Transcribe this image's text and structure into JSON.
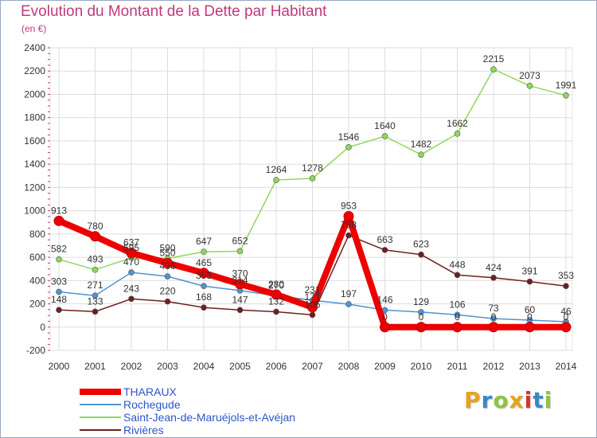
{
  "header": {
    "title": "Evolution du Montant de la Dette par Habitant",
    "subtitle": "(en €)"
  },
  "logo": {
    "text": "Proxiti",
    "colors": [
      "#e8a21c",
      "#3d86c6",
      "#8cc63f",
      "#e8a21c",
      "#d9312b",
      "#3d86c6",
      "#8cc63f"
    ]
  },
  "chart_data": {
    "type": "line",
    "x": [
      "2000",
      "2001",
      "2002",
      "2003",
      "2004",
      "2005",
      "2006",
      "2007",
      "2008",
      "2009",
      "2010",
      "2011",
      "2012",
      "2013",
      "2014"
    ],
    "ylim": [
      -200,
      2400
    ],
    "yticks": [
      -200,
      0,
      200,
      400,
      600,
      800,
      1000,
      1200,
      1400,
      1600,
      1800,
      2000,
      2200,
      2400
    ],
    "grid": true,
    "legend_position": "bottom-left",
    "series": [
      {
        "name": "THARAUX",
        "color": "#ee0000",
        "values": [
          913,
          780,
          637,
          550,
          465,
          370,
          280,
          171,
          953,
          0,
          0,
          0,
          0,
          0,
          0
        ],
        "labels": [
          "913",
          "780",
          "637",
          "550",
          "465",
          "370",
          "280",
          "171",
          "953",
          "0",
          "0",
          "0",
          "0",
          "0",
          "0"
        ]
      },
      {
        "name": "Rochegude",
        "color": "#4f94d1",
        "values": [
          303,
          271,
          470,
          436,
          353,
          314,
          270,
          231,
          197,
          146,
          129,
          106,
          73,
          60,
          46
        ],
        "labels": [
          "303",
          "271",
          "470",
          "436",
          "353",
          "314",
          "270",
          "231",
          "197",
          "146",
          "129",
          "106",
          "73",
          "60",
          "46"
        ]
      },
      {
        "name": "Saint-Jean-de-Maruéjols-et-Avéjan",
        "color": "#8fd85a",
        "values": [
          582,
          493,
          595,
          590,
          647,
          652,
          1264,
          1278,
          1546,
          1640,
          1482,
          1662,
          2215,
          2073,
          1991
        ],
        "labels": [
          "582",
          "493",
          "595",
          "590",
          "647",
          "652",
          "1264",
          "1278",
          "1546",
          "1640",
          "1482",
          "1662",
          "2215",
          "2073",
          "1991"
        ]
      },
      {
        "name": "Rivières",
        "color": "#6e1f1f",
        "values": [
          148,
          133,
          243,
          220,
          168,
          147,
          132,
          105,
          788,
          663,
          623,
          448,
          424,
          391,
          353
        ],
        "labels": [
          "148",
          "133",
          "243",
          "220",
          "168",
          "147",
          "132",
          "105",
          "788",
          "663",
          "623",
          "448",
          "424",
          "391",
          "353"
        ]
      }
    ]
  }
}
